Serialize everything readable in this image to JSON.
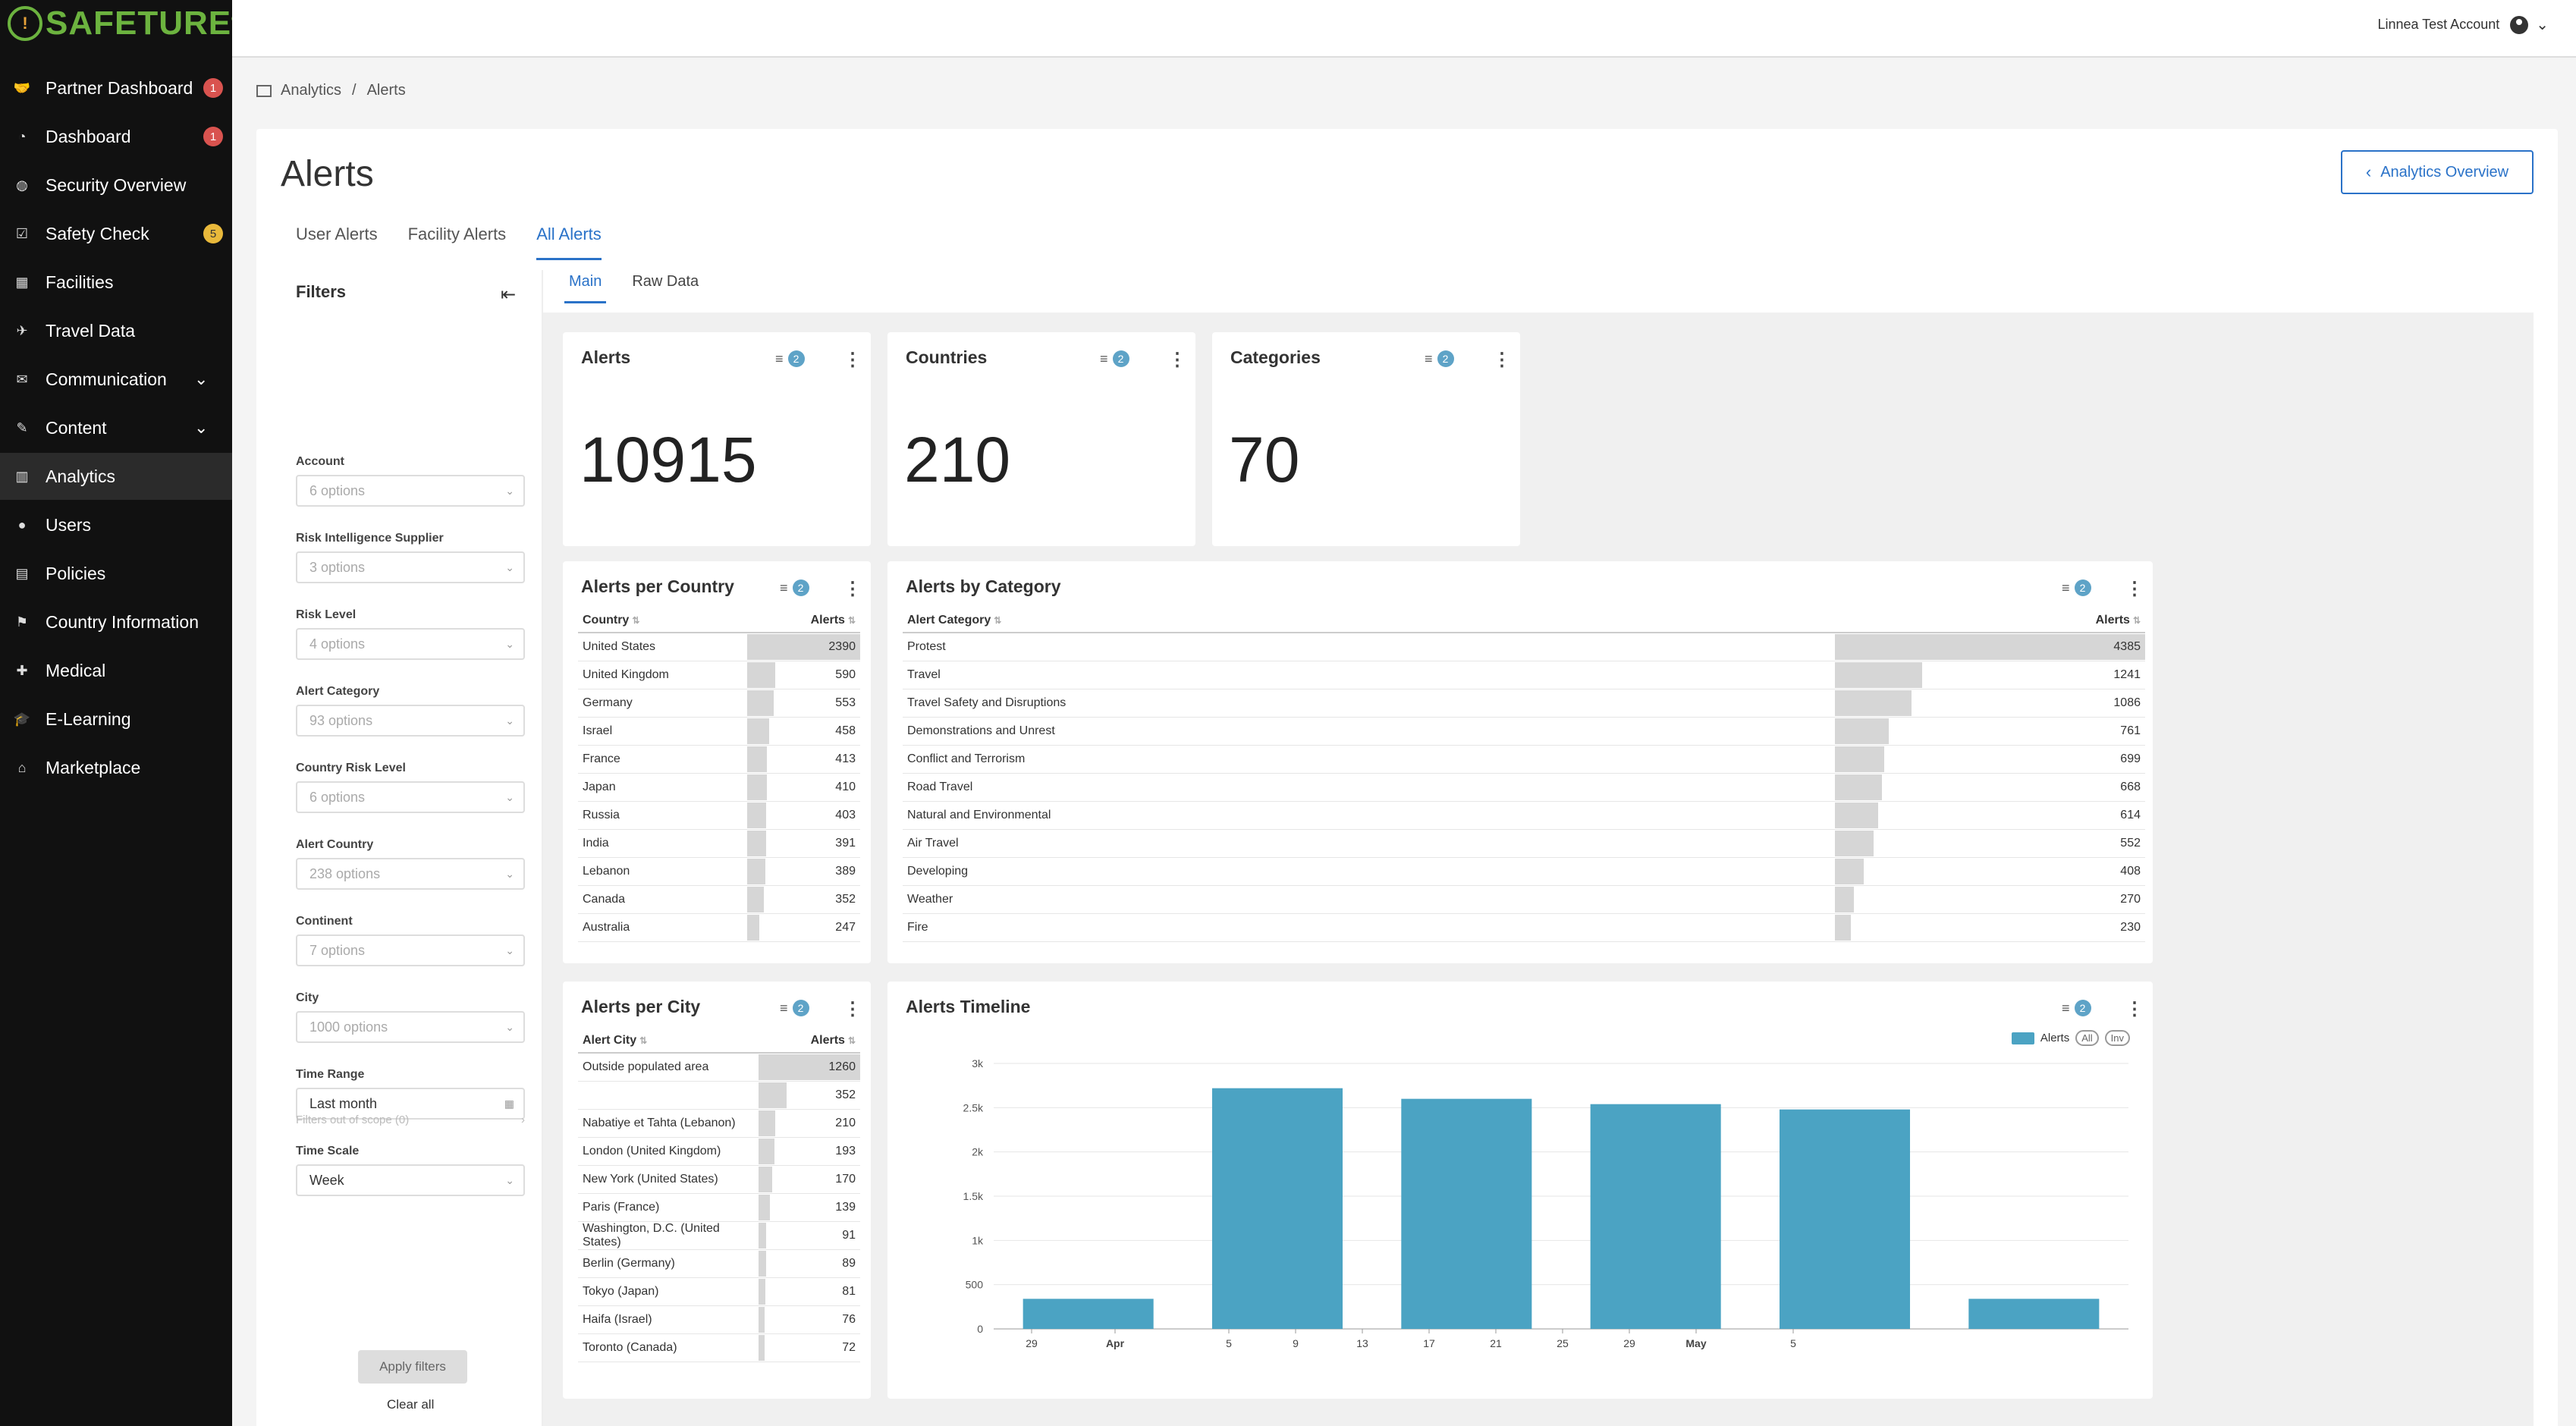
{
  "brand": {
    "name": "SAFETURE",
    "tm": "®"
  },
  "sidebar": {
    "items": [
      {
        "label": "Partner Dashboard",
        "icon": "handshake-icon",
        "glyph": "🤝",
        "badge": "1",
        "badge_color": "red"
      },
      {
        "label": "Dashboard",
        "icon": "dashboard-icon",
        "glyph": "◔",
        "badge": "1",
        "badge_color": "red"
      },
      {
        "label": "Security Overview",
        "icon": "globe-icon",
        "glyph": "◍"
      },
      {
        "label": "Safety Check",
        "icon": "check-icon",
        "glyph": "☑",
        "badge": "5",
        "badge_color": "yellow"
      },
      {
        "label": "Facilities",
        "icon": "building-icon",
        "glyph": "▦"
      },
      {
        "label": "Travel Data",
        "icon": "plane-icon",
        "glyph": "✈"
      },
      {
        "label": "Communication",
        "icon": "chat-icon",
        "glyph": "✉",
        "chevron": "⌄"
      },
      {
        "label": "Content",
        "icon": "pencil-icon",
        "glyph": "✎",
        "chevron": "⌄"
      },
      {
        "label": "Analytics",
        "icon": "chart-icon",
        "glyph": "▥",
        "active": true
      },
      {
        "label": "Users",
        "icon": "user-icon",
        "glyph": "●"
      },
      {
        "label": "Policies",
        "icon": "document-icon",
        "glyph": "▤"
      },
      {
        "label": "Country Information",
        "icon": "flag-icon",
        "glyph": "⚑"
      },
      {
        "label": "Medical",
        "icon": "medical-icon",
        "glyph": "✚"
      },
      {
        "label": "E-Learning",
        "icon": "graduation-icon",
        "glyph": "🎓"
      },
      {
        "label": "Marketplace",
        "icon": "store-icon",
        "glyph": "⌂"
      }
    ]
  },
  "account": {
    "name": "Linnea Test Account"
  },
  "breadcrumb": {
    "parent": "Analytics",
    "sep": "/",
    "current": "Alerts"
  },
  "page": {
    "title": "Alerts",
    "overview_button": "Analytics Overview"
  },
  "tabs": [
    "User Alerts",
    "Facility Alerts",
    "All Alerts"
  ],
  "filters": {
    "title": "Filters",
    "fields": [
      {
        "label": "Account",
        "value": "6 options"
      },
      {
        "label": "Risk Intelligence Supplier",
        "value": "3 options"
      },
      {
        "label": "Risk Level",
        "value": "4 options"
      },
      {
        "label": "Alert Category",
        "value": "93 options"
      },
      {
        "label": "Country Risk Level",
        "value": "6 options"
      },
      {
        "label": "Alert Country",
        "value": "238 options"
      },
      {
        "label": "Continent",
        "value": "7 options"
      },
      {
        "label": "City",
        "value": "1000 options"
      },
      {
        "label": "Time Range",
        "value": "Last month"
      },
      {
        "label": "Time Scale",
        "value": "Week"
      }
    ],
    "out_of_scope": "Filters out of scope (0)",
    "apply": "Apply filters",
    "clear": "Clear all"
  },
  "subtabs": [
    "Main",
    "Raw Data"
  ],
  "kpis": [
    {
      "title": "Alerts",
      "value": "10915",
      "filter_count": "2"
    },
    {
      "title": "Countries",
      "value": "210",
      "filter_count": "2"
    },
    {
      "title": "Categories",
      "value": "70",
      "filter_count": "2"
    }
  ],
  "per_country": {
    "title": "Alerts per Country",
    "filter_count": "2",
    "headers": [
      "Country",
      "Alerts"
    ],
    "max": 2390,
    "rows": [
      [
        "United States",
        2390
      ],
      [
        "United Kingdom",
        590
      ],
      [
        "Germany",
        553
      ],
      [
        "Israel",
        458
      ],
      [
        "France",
        413
      ],
      [
        "Japan",
        410
      ],
      [
        "Russia",
        403
      ],
      [
        "India",
        391
      ],
      [
        "Lebanon",
        389
      ],
      [
        "Canada",
        352
      ],
      [
        "Australia",
        247
      ]
    ]
  },
  "by_category": {
    "title": "Alerts by Category",
    "filter_count": "2",
    "headers": [
      "Alert Category",
      "Alerts"
    ],
    "max": 4385,
    "rows": [
      [
        "Protest",
        4385
      ],
      [
        "Travel",
        1241
      ],
      [
        "Travel Safety and Disruptions",
        1086
      ],
      [
        "Demonstrations and Unrest",
        761
      ],
      [
        "Conflict and Terrorism",
        699
      ],
      [
        "Road Travel",
        668
      ],
      [
        "Natural and Environmental",
        614
      ],
      [
        "Air Travel",
        552
      ],
      [
        "Developing",
        408
      ],
      [
        "Weather",
        270
      ],
      [
        "Fire",
        230
      ]
    ]
  },
  "per_city": {
    "title": "Alerts per City",
    "filter_count": "2",
    "headers": [
      "Alert City",
      "Alerts"
    ],
    "max": 1260,
    "rows": [
      [
        "Outside populated area",
        1260
      ],
      [
        "",
        352
      ],
      [
        "Nabatiye et Tahta (Lebanon)",
        210
      ],
      [
        "London (United Kingdom)",
        193
      ],
      [
        "New York (United States)",
        170
      ],
      [
        "Paris (France)",
        139
      ],
      [
        "Washington, D.C. (United States)",
        91
      ],
      [
        "Berlin (Germany)",
        89
      ],
      [
        "Tokyo (Japan)",
        81
      ],
      [
        "Haifa (Israel)",
        76
      ],
      [
        "Toronto (Canada)",
        72
      ]
    ]
  },
  "timeline": {
    "title": "Alerts Timeline",
    "filter_count": "2",
    "legend": "Alerts",
    "pill_all": "All",
    "pill_inv": "Inv"
  },
  "colors": {
    "accent": "#2a72c8",
    "bar": "#4ba3c3",
    "sidebar": "#111111"
  },
  "chart_data": {
    "type": "bar",
    "series": [
      {
        "name": "Alerts",
        "values": [
          340,
          2720,
          2600,
          2540,
          2480,
          340
        ]
      }
    ],
    "x_ticks": [
      "29",
      "Apr",
      "5",
      "9",
      "13",
      "17",
      "21",
      "25",
      "29",
      "May",
      "5"
    ],
    "y_ticks": [
      "0",
      "500",
      "1k",
      "1.5k",
      "2k",
      "2.5k",
      "3k"
    ],
    "ylim": [
      0,
      3000
    ],
    "legend_position": "top-right",
    "grid": true
  }
}
